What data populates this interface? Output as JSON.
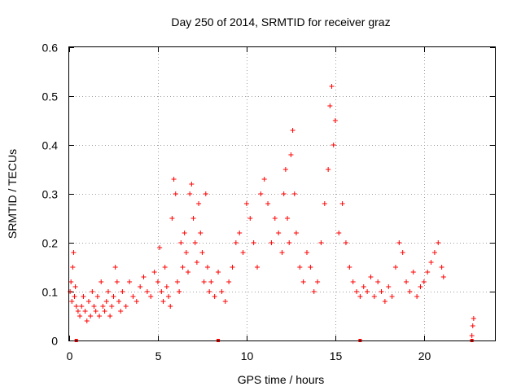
{
  "chart_data": {
    "type": "scatter",
    "title": "Day 250 of 2014, SRMTID for receiver graz",
    "xlabel": "GPS time / hours",
    "ylabel": "SRMTID / TECUs",
    "xlim": [
      0,
      24
    ],
    "ylim": [
      0,
      0.6
    ],
    "xticks": [
      0,
      5,
      10,
      15,
      20
    ],
    "xtick_labels": [
      "0",
      "5",
      "10",
      "15",
      "20"
    ],
    "yticks": [
      0,
      0.1,
      0.2,
      0.3,
      0.4,
      0.5,
      0.6
    ],
    "ytick_labels": [
      "0",
      "0.1",
      "0.2",
      "0.3",
      "0.4",
      "0.5",
      "0.6"
    ],
    "grid": true,
    "marker": "+",
    "color": "#ff0000",
    "series": [
      {
        "name": "SRMTID (receiver graz)",
        "x": [
          0.05,
          0.1,
          0.15,
          0.2,
          0.25,
          0.3,
          0.35,
          0.4,
          0.5,
          0.6,
          0.7,
          0.8,
          0.9,
          1.0,
          1.1,
          1.2,
          1.3,
          1.4,
          1.5,
          1.6,
          1.7,
          1.8,
          1.9,
          2.0,
          2.1,
          2.2,
          2.3,
          2.4,
          2.5,
          2.6,
          2.7,
          2.8,
          2.9,
          3.0,
          3.2,
          3.4,
          3.6,
          3.8,
          4.0,
          4.2,
          4.4,
          4.6,
          4.8,
          5.0,
          5.1,
          5.2,
          5.3,
          5.4,
          5.5,
          5.6,
          5.7,
          5.8,
          5.9,
          6.0,
          6.1,
          6.2,
          6.3,
          6.4,
          6.5,
          6.6,
          6.7,
          6.8,
          6.9,
          7.0,
          7.1,
          7.2,
          7.3,
          7.4,
          7.5,
          7.6,
          7.7,
          7.8,
          7.9,
          8.0,
          8.2,
          8.4,
          8.6,
          8.8,
          9.0,
          9.2,
          9.4,
          9.6,
          9.8,
          10.0,
          10.2,
          10.4,
          10.6,
          10.8,
          11.0,
          11.2,
          11.4,
          11.6,
          11.8,
          12.0,
          12.1,
          12.2,
          12.3,
          12.4,
          12.5,
          12.6,
          12.7,
          12.8,
          13.0,
          13.2,
          13.4,
          13.6,
          13.8,
          14.0,
          14.2,
          14.4,
          14.6,
          14.7,
          14.8,
          14.9,
          15.0,
          15.2,
          15.4,
          15.6,
          15.8,
          16.0,
          16.2,
          16.4,
          16.6,
          16.8,
          17.0,
          17.2,
          17.4,
          17.6,
          17.8,
          18.0,
          18.2,
          18.4,
          18.6,
          18.8,
          19.0,
          19.2,
          19.4,
          19.6,
          19.8,
          20.0,
          20.2,
          20.4,
          20.6,
          20.8,
          21.0,
          21.1,
          22.7,
          22.75,
          22.8
        ],
        "y": [
          0.1,
          0.12,
          0.08,
          0.15,
          0.18,
          0.09,
          0.11,
          0.07,
          0.06,
          0.05,
          0.07,
          0.09,
          0.06,
          0.04,
          0.08,
          0.05,
          0.1,
          0.07,
          0.06,
          0.09,
          0.05,
          0.12,
          0.07,
          0.06,
          0.08,
          0.1,
          0.05,
          0.07,
          0.09,
          0.15,
          0.12,
          0.08,
          0.06,
          0.1,
          0.07,
          0.12,
          0.09,
          0.08,
          0.11,
          0.13,
          0.1,
          0.09,
          0.14,
          0.12,
          0.19,
          0.1,
          0.08,
          0.15,
          0.11,
          0.09,
          0.07,
          0.25,
          0.33,
          0.3,
          0.12,
          0.1,
          0.2,
          0.15,
          0.22,
          0.18,
          0.14,
          0.3,
          0.32,
          0.25,
          0.2,
          0.16,
          0.28,
          0.22,
          0.18,
          0.12,
          0.3,
          0.15,
          0.1,
          0.12,
          0.09,
          0.14,
          0.1,
          0.08,
          0.12,
          0.15,
          0.2,
          0.22,
          0.18,
          0.28,
          0.25,
          0.2,
          0.15,
          0.3,
          0.33,
          0.28,
          0.2,
          0.25,
          0.22,
          0.18,
          0.3,
          0.35,
          0.25,
          0.2,
          0.38,
          0.43,
          0.3,
          0.22,
          0.15,
          0.12,
          0.18,
          0.15,
          0.1,
          0.12,
          0.2,
          0.28,
          0.35,
          0.48,
          0.52,
          0.4,
          0.45,
          0.22,
          0.28,
          0.2,
          0.15,
          0.12,
          0.1,
          0.09,
          0.11,
          0.1,
          0.13,
          0.09,
          0.12,
          0.1,
          0.08,
          0.11,
          0.09,
          0.15,
          0.2,
          0.18,
          0.12,
          0.1,
          0.14,
          0.09,
          0.11,
          0.12,
          0.14,
          0.16,
          0.18,
          0.2,
          0.15,
          0.13,
          0.01,
          0.03,
          0.045
        ]
      }
    ],
    "gap_markers_x": [
      0.4,
      8.4,
      16.4,
      22.7
    ]
  }
}
